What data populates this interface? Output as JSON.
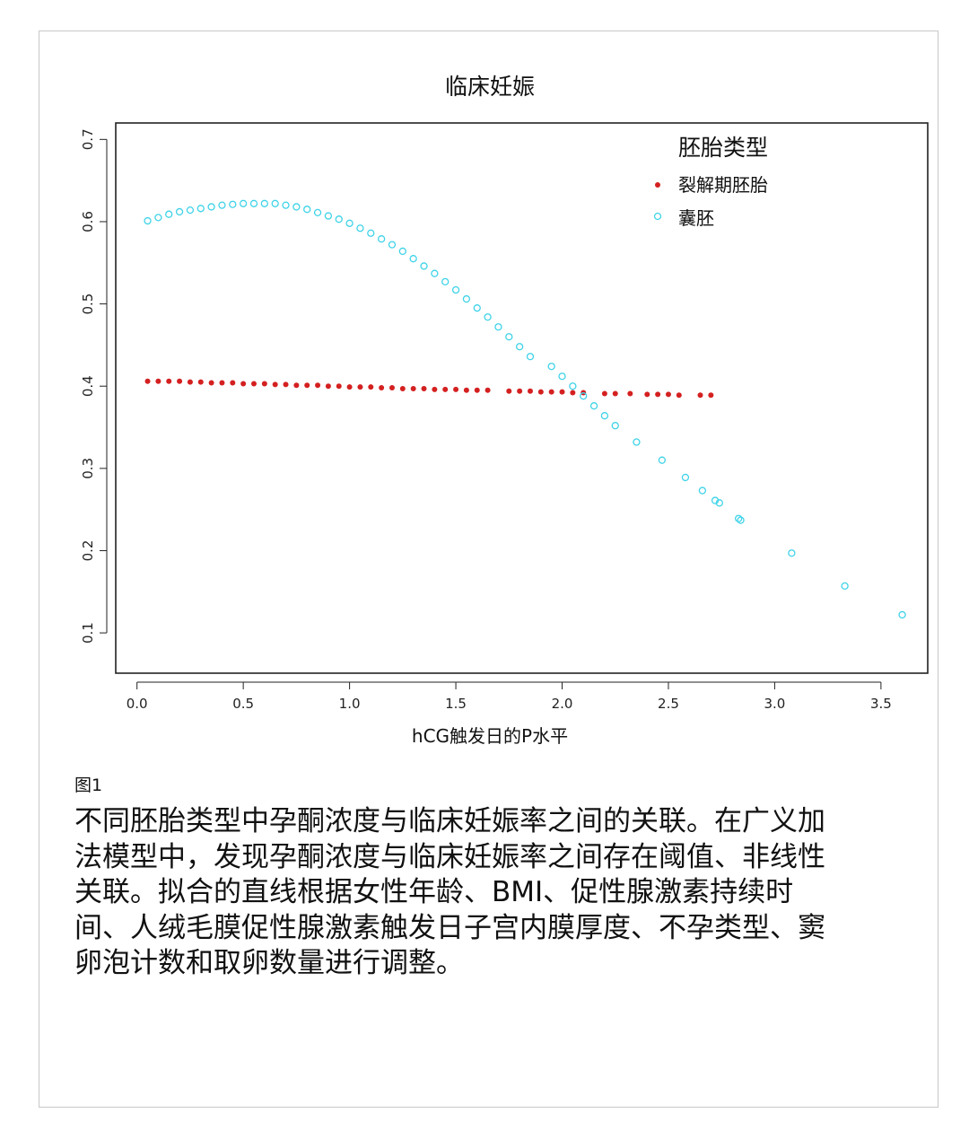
{
  "chart_data": {
    "type": "scatter",
    "title": "临床妊娠",
    "xlabel": "hCG触发日的P水平",
    "ylabel": "",
    "xlim": [
      -0.1,
      3.72
    ],
    "ylim": [
      0.051,
      0.72
    ],
    "x_ticks": [
      0.0,
      0.5,
      1.0,
      1.5,
      2.0,
      2.5,
      3.0,
      3.5
    ],
    "x_tick_labels": [
      "0.0",
      "0.5",
      "1.0",
      "1.5",
      "2.0",
      "2.5",
      "3.0",
      "3.5"
    ],
    "y_ticks": [
      0.1,
      0.2,
      0.3,
      0.4,
      0.5,
      0.6,
      0.7
    ],
    "y_tick_labels": [
      "0.1",
      "0.2",
      "0.3",
      "0.4",
      "0.5",
      "0.6",
      "0.7"
    ],
    "grid": false,
    "legend": {
      "title": "胚胎类型",
      "position": "top-right"
    },
    "series": [
      {
        "name": "裂解期胚胎",
        "color": "#d42020",
        "marker": "filled-dot",
        "points": [
          [
            0.05,
            0.406
          ],
          [
            0.1,
            0.406
          ],
          [
            0.15,
            0.406
          ],
          [
            0.2,
            0.406
          ],
          [
            0.25,
            0.405
          ],
          [
            0.3,
            0.405
          ],
          [
            0.35,
            0.404
          ],
          [
            0.4,
            0.404
          ],
          [
            0.45,
            0.404
          ],
          [
            0.5,
            0.403
          ],
          [
            0.55,
            0.403
          ],
          [
            0.6,
            0.403
          ],
          [
            0.65,
            0.402
          ],
          [
            0.7,
            0.402
          ],
          [
            0.75,
            0.401
          ],
          [
            0.8,
            0.401
          ],
          [
            0.85,
            0.401
          ],
          [
            0.9,
            0.4
          ],
          [
            0.95,
            0.4
          ],
          [
            1.0,
            0.399
          ],
          [
            1.05,
            0.399
          ],
          [
            1.1,
            0.399
          ],
          [
            1.15,
            0.398
          ],
          [
            1.2,
            0.398
          ],
          [
            1.25,
            0.397
          ],
          [
            1.3,
            0.397
          ],
          [
            1.35,
            0.397
          ],
          [
            1.4,
            0.396
          ],
          [
            1.45,
            0.396
          ],
          [
            1.5,
            0.396
          ],
          [
            1.55,
            0.395
          ],
          [
            1.6,
            0.395
          ],
          [
            1.65,
            0.395
          ],
          [
            1.75,
            0.394
          ],
          [
            1.8,
            0.394
          ],
          [
            1.85,
            0.394
          ],
          [
            1.9,
            0.393
          ],
          [
            1.95,
            0.393
          ],
          [
            2.0,
            0.393
          ],
          [
            2.05,
            0.392
          ],
          [
            2.1,
            0.392
          ],
          [
            2.2,
            0.391
          ],
          [
            2.25,
            0.391
          ],
          [
            2.32,
            0.391
          ],
          [
            2.4,
            0.39
          ],
          [
            2.45,
            0.39
          ],
          [
            2.5,
            0.39
          ],
          [
            2.55,
            0.389
          ],
          [
            2.65,
            0.389
          ],
          [
            2.7,
            0.389
          ]
        ]
      },
      {
        "name": "囊胚",
        "color": "#3fd3e8",
        "marker": "open-circle",
        "points": [
          [
            0.05,
            0.601
          ],
          [
            0.1,
            0.605
          ],
          [
            0.15,
            0.609
          ],
          [
            0.2,
            0.612
          ],
          [
            0.25,
            0.614
          ],
          [
            0.3,
            0.616
          ],
          [
            0.35,
            0.618
          ],
          [
            0.4,
            0.62
          ],
          [
            0.45,
            0.621
          ],
          [
            0.5,
            0.622
          ],
          [
            0.55,
            0.622
          ],
          [
            0.6,
            0.622
          ],
          [
            0.65,
            0.622
          ],
          [
            0.7,
            0.62
          ],
          [
            0.75,
            0.618
          ],
          [
            0.8,
            0.615
          ],
          [
            0.85,
            0.611
          ],
          [
            0.9,
            0.607
          ],
          [
            0.95,
            0.603
          ],
          [
            1.0,
            0.598
          ],
          [
            1.05,
            0.592
          ],
          [
            1.1,
            0.586
          ],
          [
            1.15,
            0.579
          ],
          [
            1.2,
            0.572
          ],
          [
            1.25,
            0.564
          ],
          [
            1.3,
            0.555
          ],
          [
            1.35,
            0.546
          ],
          [
            1.4,
            0.537
          ],
          [
            1.45,
            0.527
          ],
          [
            1.5,
            0.517
          ],
          [
            1.55,
            0.506
          ],
          [
            1.6,
            0.495
          ],
          [
            1.65,
            0.484
          ],
          [
            1.7,
            0.472
          ],
          [
            1.75,
            0.46
          ],
          [
            1.8,
            0.448
          ],
          [
            1.85,
            0.436
          ],
          [
            1.95,
            0.424
          ],
          [
            2.0,
            0.412
          ],
          [
            2.05,
            0.4
          ],
          [
            2.1,
            0.388
          ],
          [
            2.15,
            0.376
          ],
          [
            2.2,
            0.364
          ],
          [
            2.25,
            0.352
          ],
          [
            2.35,
            0.332
          ],
          [
            2.47,
            0.31
          ],
          [
            2.58,
            0.289
          ],
          [
            2.66,
            0.273
          ],
          [
            2.72,
            0.261
          ],
          [
            2.74,
            0.258
          ],
          [
            2.83,
            0.239
          ],
          [
            2.84,
            0.237
          ],
          [
            3.08,
            0.197
          ],
          [
            3.33,
            0.157
          ],
          [
            3.6,
            0.122
          ]
        ]
      }
    ]
  },
  "figure": {
    "label": "图1",
    "caption": "不同胚胎类型中孕酮浓度与临床妊娠率之间的关联。在广义加法模型中，发现孕酮浓度与临床妊娠率之间存在阈值、非线性关联。拟合的直线根据女性年龄、BMI、促性腺激素持续时间、人绒毛膜促性腺激素触发日子宫内膜厚度、不孕类型、窦卵泡计数和取卵数量进行调整。"
  }
}
